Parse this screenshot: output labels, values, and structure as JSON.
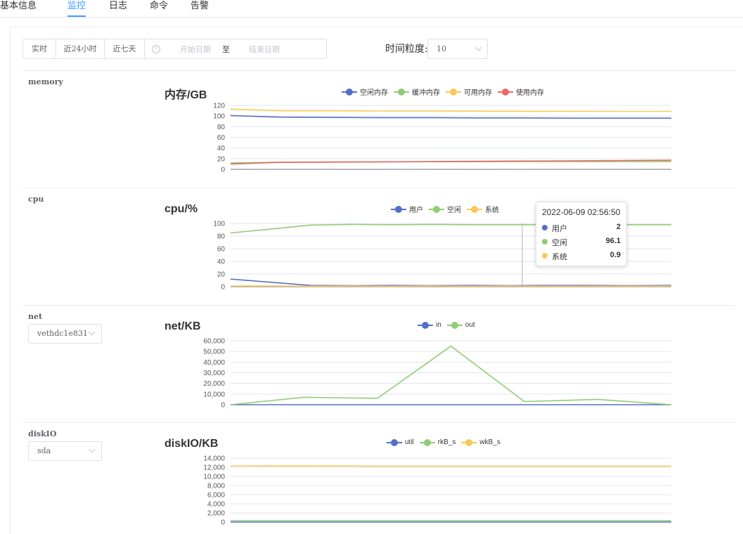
{
  "tabs": [
    "基本信息",
    "监控",
    "日志",
    "命令",
    "告警"
  ],
  "active_tab": 1,
  "filters": {
    "quick_ranges": [
      "实时",
      "近24小时",
      "近七天"
    ],
    "start_placeholder": "开始日期",
    "range_separator": "至",
    "end_placeholder": "结束日期",
    "granularity_label": "时间粒度:",
    "granularity_value": "10"
  },
  "colors": {
    "blue": "#5470c6",
    "green": "#91cc75",
    "yellow": "#fac858",
    "red": "#ee6666"
  },
  "sections": {
    "memory": {
      "label": "memory",
      "chart_data": {
        "type": "line",
        "title": "内存/GB",
        "ylim": [
          0,
          120
        ],
        "y_ticks": [
          "120",
          "100",
          "80",
          "60",
          "40",
          "20",
          "0"
        ],
        "series": [
          {
            "name": "空闲内存",
            "color": "#5470c6",
            "values": [
              101,
              98,
              97.5,
              97,
              97,
              96.5,
              96.5,
              96,
              96,
              96
            ]
          },
          {
            "name": "缓冲内存",
            "color": "#91cc75",
            "values": [
              12,
              13.5,
              14,
              14,
              14.2,
              14.3,
              14.5,
              14.5,
              14.6,
              14.6
            ]
          },
          {
            "name": "可用内存",
            "color": "#fac858",
            "values": [
              113,
              110,
              110,
              109.5,
              109.5,
              109.2,
              109,
              109,
              108.8,
              108.8
            ]
          },
          {
            "name": "使用内存",
            "color": "#ee6666",
            "values": [
              10,
              13,
              13.5,
              14,
              14.5,
              15,
              15.5,
              16,
              16.5,
              17
            ]
          }
        ]
      }
    },
    "cpu": {
      "label": "cpu",
      "chart_data": {
        "type": "line",
        "title": "cpu/%",
        "ylim": [
          0,
          100
        ],
        "y_ticks": [
          "100",
          "80",
          "60",
          "40",
          "20",
          "0"
        ],
        "series": [
          {
            "name": "用户",
            "color": "#5470c6",
            "values": [
              12,
              7,
              2,
              1.5,
              2,
              1.5,
              2,
              1.5,
              2,
              2,
              1.5,
              2
            ]
          },
          {
            "name": "空闲",
            "color": "#91cc75",
            "values": [
              85,
              91,
              97.5,
              98.5,
              98,
              98.5,
              98,
              98,
              98,
              96.1,
              98,
              98
            ]
          },
          {
            "name": "系统",
            "color": "#fac858",
            "values": [
              1,
              1,
              0.8,
              0.9,
              0.8,
              0.9,
              0.8,
              0.9,
              0.8,
              0.9,
              0.8,
              0.9
            ]
          }
        ]
      },
      "tooltip": {
        "time": "2022-06-09 02:56:50",
        "rows": [
          {
            "name": "用户",
            "value": "2",
            "color": "#5470c6"
          },
          {
            "name": "空闲",
            "value": "96.1",
            "color": "#91cc75"
          },
          {
            "name": "系统",
            "value": "0.9",
            "color": "#fac858"
          }
        ]
      }
    },
    "net": {
      "label": "net",
      "select_value": "vethdc1e831",
      "chart_data": {
        "type": "line",
        "title": "net/KB",
        "ylim": [
          0,
          60000
        ],
        "y_ticks": [
          "60,000",
          "50,000",
          "40,000",
          "30,000",
          "20,000",
          "10,000",
          "0"
        ],
        "series": [
          {
            "name": "in",
            "color": "#5470c6",
            "values": [
              0,
              0,
              0,
              0,
              0,
              0,
              0
            ]
          },
          {
            "name": "out",
            "color": "#91cc75",
            "values": [
              0,
              7000,
              6000,
              55000,
              3000,
              5000,
              0
            ]
          }
        ]
      }
    },
    "diskio": {
      "label": "diskIO",
      "select_value": "sda",
      "chart_data": {
        "type": "line",
        "title": "diskIO/KB",
        "ylim": [
          0,
          14000
        ],
        "y_ticks": [
          "14,000",
          "12,000",
          "10,000",
          "8,000",
          "6,000",
          "4,000",
          "2,000",
          "0"
        ],
        "series": [
          {
            "name": "util",
            "color": "#5470c6",
            "values": [
              0,
              0,
              0,
              0
            ]
          },
          {
            "name": "rkB_s",
            "color": "#91cc75",
            "values": [
              300,
              300,
              300,
              300
            ]
          },
          {
            "name": "wkB_s",
            "color": "#fac858",
            "values": [
              12300,
              12250,
              12250,
              12250
            ]
          }
        ]
      }
    }
  }
}
